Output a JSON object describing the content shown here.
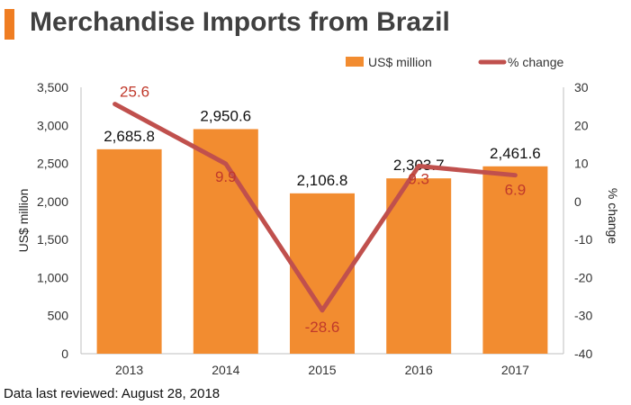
{
  "title": "Merchandise Imports from Brazil",
  "footer": "Data last reviewed: August 28, 2018",
  "colors": {
    "bar": "#F28C30",
    "line": "#C0504D",
    "accent": "#EF7D22",
    "pct_label": "#C0392B",
    "axis": "#bfbfbf"
  },
  "chart_data": {
    "type": "bar",
    "title": "Merchandise Imports from Brazil",
    "categories": [
      "2013",
      "2014",
      "2015",
      "2016",
      "2017"
    ],
    "series": [
      {
        "name": "US$ million",
        "type": "bar",
        "axis": "left",
        "values": [
          2685.8,
          2950.6,
          2106.8,
          2303.7,
          2461.6
        ],
        "labels": [
          "2,685.8",
          "2,950.6",
          "2,106.8",
          "2,303.7",
          "2,461.6"
        ]
      },
      {
        "name": "% change",
        "type": "line",
        "axis": "right",
        "values": [
          25.6,
          9.9,
          -28.6,
          9.3,
          6.9
        ],
        "labels": [
          "25.6",
          "9.9",
          "-28.6",
          "9.3",
          "6.9"
        ]
      }
    ],
    "ylabel": "US$ million",
    "ylim": [
      0,
      3500
    ],
    "yticks": [
      0,
      500,
      1000,
      1500,
      2000,
      2500,
      3000,
      3500
    ],
    "ytick_labels": [
      "0",
      "500",
      "1,000",
      "1,500",
      "2,000",
      "2,500",
      "3,000",
      "3,500"
    ],
    "y2label": "% change",
    "y2lim": [
      -40,
      30
    ],
    "y2ticks": [
      -40,
      -30,
      -20,
      -10,
      0,
      10,
      20,
      30
    ],
    "y2tick_labels": [
      "-40",
      "-30",
      "-20",
      "-10",
      "0",
      "10",
      "20",
      "30"
    ],
    "legend": {
      "position": "top-right",
      "entries": [
        "US$ million",
        "% change"
      ]
    },
    "grid": false
  }
}
